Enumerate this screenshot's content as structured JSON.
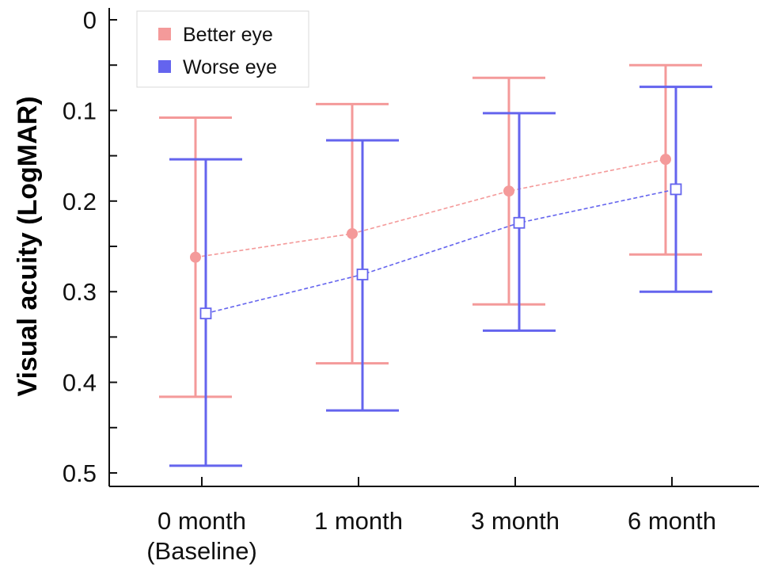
{
  "chart_data": {
    "type": "line",
    "title": "",
    "xlabel": "",
    "ylabel": "Visual acuity (LogMAR)",
    "categories": [
      [
        "0 month",
        "(Baseline)"
      ],
      [
        "1 month"
      ],
      [
        "3 month"
      ],
      [
        "6 month"
      ]
    ],
    "y_axis": {
      "min": 0,
      "max": 0.5,
      "inverted": true,
      "major_ticks": [
        0,
        0.1,
        0.2,
        0.3,
        0.4,
        0.5
      ],
      "tick_labels": [
        "0",
        "0.1",
        "0.2",
        "0.3",
        "0.4",
        "0.5"
      ],
      "minor_step": 0.05
    },
    "grid": false,
    "legend_position": "top-left",
    "series": [
      {
        "name": "Better eye",
        "color": "#f49a9a",
        "marker": "filled-circle",
        "line_style": "dashed",
        "values": [
          0.262,
          0.236,
          0.189,
          0.154
        ],
        "error_upper": [
          0.108,
          0.093,
          0.064,
          0.05
        ],
        "error_lower": [
          0.416,
          0.379,
          0.314,
          0.259
        ]
      },
      {
        "name": "Worse eye",
        "color": "#6464ee",
        "marker": "open-square",
        "line_style": "dashed",
        "values": [
          0.324,
          0.281,
          0.224,
          0.187
        ],
        "error_upper": [
          0.154,
          0.133,
          0.103,
          0.074
        ],
        "error_lower": [
          0.492,
          0.431,
          0.343,
          0.3
        ]
      }
    ]
  }
}
